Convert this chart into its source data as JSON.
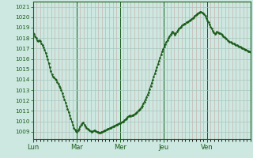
{
  "bg_color": "#cce8e0",
  "grid_color_v": "#c8b8b8",
  "grid_color_h": "#b8c8c0",
  "line_color": "#1a5c1a",
  "tick_label_color": "#1a5c1a",
  "ylim": [
    1008.3,
    1021.5
  ],
  "yticks": [
    1009,
    1010,
    1011,
    1012,
    1013,
    1014,
    1015,
    1016,
    1017,
    1018,
    1019,
    1020,
    1021
  ],
  "day_labels": [
    "Lun",
    "Mar",
    "Mer",
    "Jeu",
    "Ven"
  ],
  "day_positions": [
    0,
    48,
    96,
    144,
    192
  ],
  "total_hours": 240,
  "pressure_data": [
    1018.5,
    1018.4,
    1018.2,
    1018.0,
    1017.8,
    1017.7,
    1017.8,
    1017.7,
    1017.5,
    1017.3,
    1017.1,
    1016.9,
    1016.6,
    1016.3,
    1016.0,
    1015.6,
    1015.2,
    1014.8,
    1014.5,
    1014.3,
    1014.2,
    1014.1,
    1014.0,
    1013.8,
    1013.6,
    1013.4,
    1013.2,
    1013.0,
    1012.7,
    1012.4,
    1012.1,
    1011.8,
    1011.5,
    1011.2,
    1010.9,
    1010.6,
    1010.3,
    1010.0,
    1009.7,
    1009.4,
    1009.2,
    1009.05,
    1009.0,
    1009.1,
    1009.3,
    1009.5,
    1009.7,
    1009.85,
    1009.9,
    1009.7,
    1009.5,
    1009.4,
    1009.3,
    1009.2,
    1009.1,
    1009.05,
    1009.0,
    1009.05,
    1009.1,
    1009.1,
    1009.05,
    1009.0,
    1008.95,
    1008.9,
    1008.92,
    1008.95,
    1009.0,
    1009.05,
    1009.1,
    1009.15,
    1009.2,
    1009.25,
    1009.3,
    1009.35,
    1009.4,
    1009.45,
    1009.5,
    1009.55,
    1009.6,
    1009.65,
    1009.7,
    1009.75,
    1009.8,
    1009.85,
    1009.9,
    1009.95,
    1010.0,
    1010.1,
    1010.2,
    1010.3,
    1010.4,
    1010.5,
    1010.55,
    1010.5,
    1010.55,
    1010.6,
    1010.65,
    1010.7,
    1010.8,
    1010.9,
    1011.0,
    1011.1,
    1011.2,
    1011.35,
    1011.5,
    1011.7,
    1011.9,
    1012.1,
    1012.3,
    1012.55,
    1012.8,
    1013.1,
    1013.4,
    1013.7,
    1014.0,
    1014.3,
    1014.6,
    1014.9,
    1015.2,
    1015.5,
    1015.8,
    1016.1,
    1016.4,
    1016.7,
    1016.95,
    1017.2,
    1017.4,
    1017.6,
    1017.8,
    1018.0,
    1018.2,
    1018.35,
    1018.5,
    1018.65,
    1018.5,
    1018.35,
    1018.5,
    1018.6,
    1018.75,
    1018.9,
    1019.0,
    1019.1,
    1019.2,
    1019.3,
    1019.35,
    1019.4,
    1019.5,
    1019.55,
    1019.6,
    1019.7,
    1019.75,
    1019.8,
    1019.9,
    1020.0,
    1020.1,
    1020.2,
    1020.3,
    1020.4,
    1020.45,
    1020.5,
    1020.5,
    1020.45,
    1020.4,
    1020.3,
    1020.1,
    1019.9,
    1019.7,
    1019.5,
    1019.3,
    1019.1,
    1018.9,
    1018.7,
    1018.55,
    1018.4,
    1018.5,
    1018.6,
    1018.55,
    1018.5,
    1018.45,
    1018.4,
    1018.3,
    1018.2,
    1018.1,
    1018.0,
    1017.9,
    1017.8,
    1017.7,
    1017.65,
    1017.6,
    1017.55,
    1017.5,
    1017.45,
    1017.4,
    1017.35,
    1017.3,
    1017.25,
    1017.2,
    1017.15,
    1017.1,
    1017.05,
    1017.0,
    1016.95,
    1016.9,
    1016.85,
    1016.8,
    1016.75,
    1016.7,
    1016.65
  ]
}
